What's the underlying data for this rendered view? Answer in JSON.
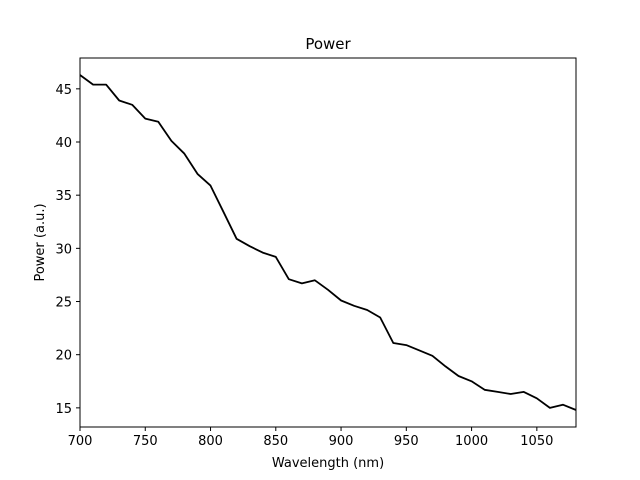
{
  "chart_data": {
    "type": "line",
    "title": "Power",
    "xlabel": "Wavelength (nm)",
    "ylabel": "Power (a.u.)",
    "xlim": [
      700,
      1080
    ],
    "ylim": [
      13.2,
      47.9
    ],
    "xticks": [
      700,
      750,
      800,
      850,
      900,
      950,
      1000,
      1050
    ],
    "yticks": [
      15,
      20,
      25,
      30,
      35,
      40,
      45
    ],
    "grid": false,
    "legend": "none",
    "line_color": "#000000",
    "series": [
      {
        "x": [
          700,
          710,
          720,
          730,
          740,
          750,
          760,
          770,
          780,
          790,
          800,
          810,
          820,
          830,
          840,
          850,
          860,
          870,
          880,
          890,
          900,
          910,
          920,
          930,
          940,
          950,
          960,
          970,
          980,
          990,
          1000,
          1010,
          1020,
          1030,
          1040,
          1050,
          1060,
          1070,
          1080
        ],
        "y": [
          46.3,
          45.4,
          45.4,
          43.9,
          43.5,
          42.2,
          41.9,
          40.1,
          38.9,
          37.0,
          35.9,
          33.4,
          30.9,
          30.2,
          29.6,
          29.2,
          27.1,
          26.7,
          27.0,
          26.1,
          25.1,
          24.6,
          24.2,
          23.5,
          21.1,
          20.9,
          20.4,
          19.9,
          18.9,
          18.0,
          17.5,
          16.7,
          16.5,
          16.3,
          16.5,
          15.9,
          15.0,
          15.3,
          14.8
        ]
      }
    ]
  }
}
